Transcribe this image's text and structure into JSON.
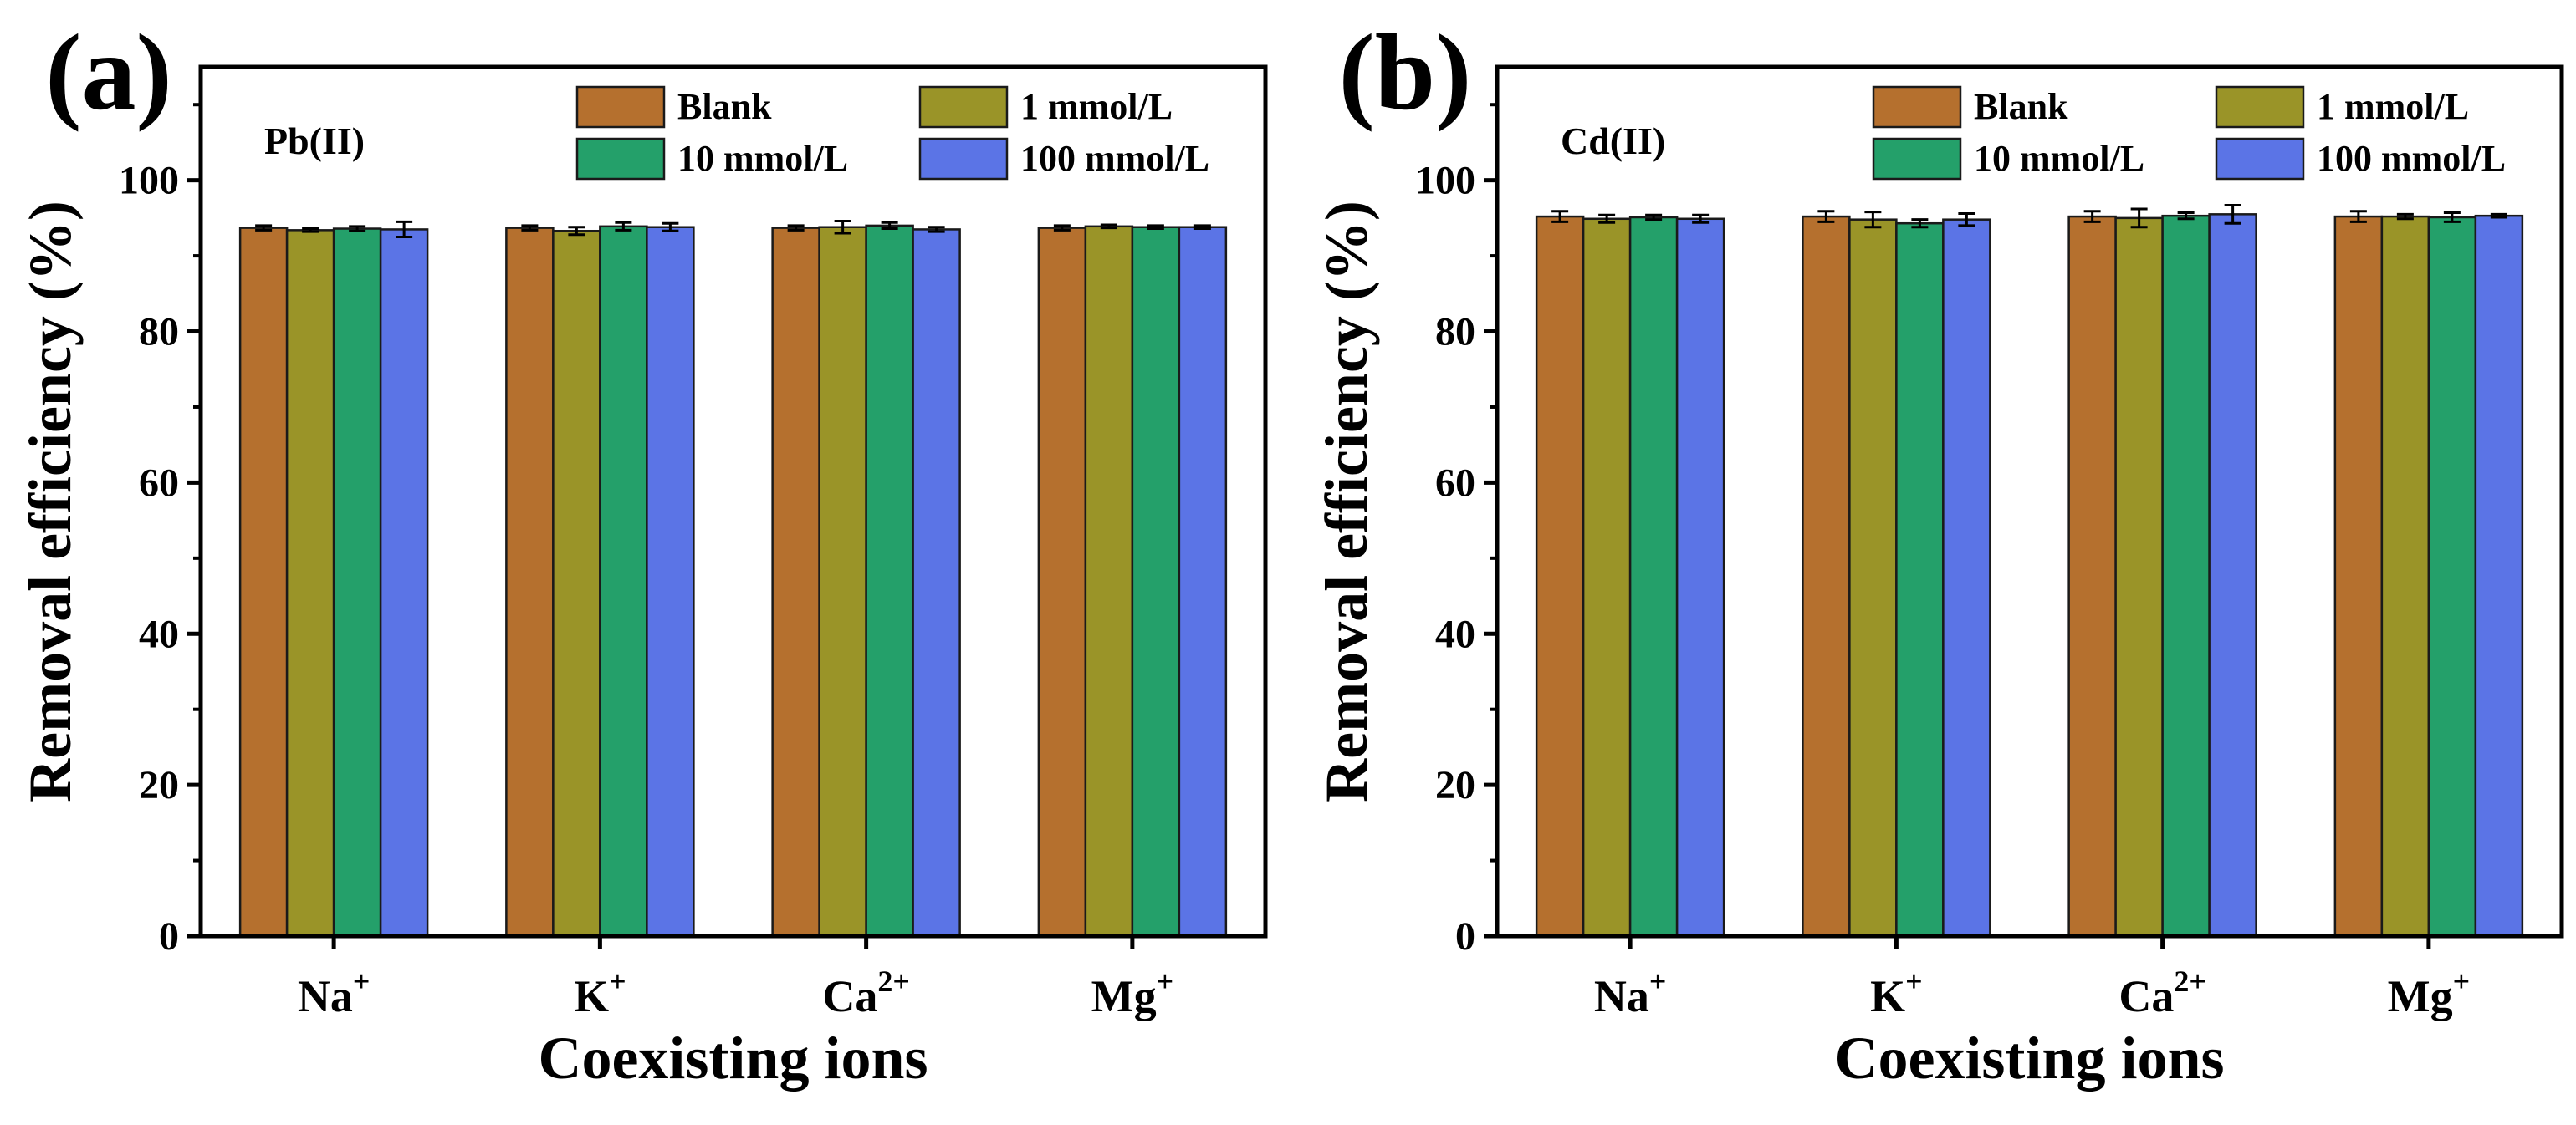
{
  "figure": {
    "colors": {
      "Blank": "#B5702E",
      "1 mmol/L": "#9A9428",
      "10 mmol/L": "#24A06A",
      "100 mmol/L": "#5B74E6"
    }
  },
  "chart_data": [
    {
      "type": "bar",
      "panel_label": "(a)",
      "annotation": "Pb(II)",
      "xlabel": "Coexisting ions",
      "ylabel": "Removal efficiency (%)",
      "ylim": [
        0,
        115
      ],
      "yticks": [
        0,
        20,
        40,
        60,
        80,
        100
      ],
      "categories": [
        {
          "base": "Na",
          "sup": "+"
        },
        {
          "base": "K",
          "sup": "+"
        },
        {
          "base": "Ca",
          "sup": "2+"
        },
        {
          "base": "Mg",
          "sup": "+"
        }
      ],
      "legend": [
        "Blank",
        "1 mmol/L",
        "10 mmol/L",
        "100 mmol/L"
      ],
      "series": [
        {
          "name": "Blank",
          "values": [
            93.7,
            93.7,
            93.7,
            93.7
          ],
          "errors": [
            0.3,
            0.3,
            0.3,
            0.3
          ]
        },
        {
          "name": "1 mmol/L",
          "values": [
            93.4,
            93.3,
            93.8,
            93.9
          ],
          "errors": [
            0.2,
            0.5,
            0.8,
            0.2
          ]
        },
        {
          "name": "10 mmol/L",
          "values": [
            93.6,
            93.9,
            94.0,
            93.8
          ],
          "errors": [
            0.3,
            0.5,
            0.4,
            0.2
          ]
        },
        {
          "name": "100 mmol/L",
          "values": [
            93.5,
            93.8,
            93.5,
            93.8
          ],
          "errors": [
            1.0,
            0.5,
            0.3,
            0.2
          ]
        }
      ]
    },
    {
      "type": "bar",
      "panel_label": "(b)",
      "annotation": "Cd(II)",
      "xlabel": "Coexisting ions",
      "ylabel": "Removal efficiency (%)",
      "ylim": [
        0,
        115
      ],
      "yticks": [
        0,
        20,
        40,
        60,
        80,
        100
      ],
      "categories": [
        {
          "base": "Na",
          "sup": "+"
        },
        {
          "base": "K",
          "sup": "+"
        },
        {
          "base": "Ca",
          "sup": "2+"
        },
        {
          "base": "Mg",
          "sup": "+"
        }
      ],
      "legend": [
        "Blank",
        "1 mmol/L",
        "10 mmol/L",
        "100 mmol/L"
      ],
      "series": [
        {
          "name": "Blank",
          "values": [
            95.2,
            95.2,
            95.2,
            95.2
          ],
          "errors": [
            0.7,
            0.7,
            0.7,
            0.7
          ]
        },
        {
          "name": "1 mmol/L",
          "values": [
            94.9,
            94.8,
            95.0,
            95.2
          ],
          "errors": [
            0.5,
            1.0,
            1.2,
            0.3
          ]
        },
        {
          "name": "10 mmol/L",
          "values": [
            95.1,
            94.3,
            95.3,
            95.1
          ],
          "errors": [
            0.3,
            0.5,
            0.4,
            0.6
          ]
        },
        {
          "name": "100 mmol/L",
          "values": [
            94.9,
            94.8,
            95.5,
            95.3
          ],
          "errors": [
            0.5,
            0.8,
            1.2,
            0.2
          ]
        }
      ]
    }
  ]
}
